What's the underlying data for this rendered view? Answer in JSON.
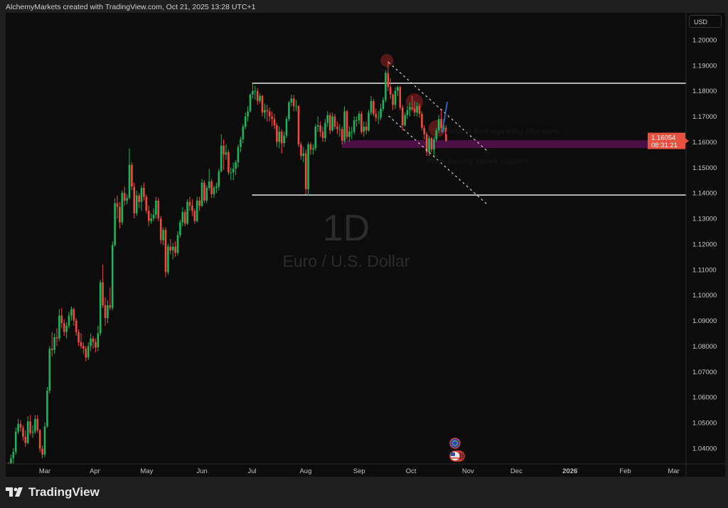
{
  "header": {
    "attribution": "AlchemyMarkets created with TradingView.com, Oct 21, 2025 13:28 UTC+1"
  },
  "footer": {
    "brand": "TradingView"
  },
  "price_axis": {
    "currency": "USD"
  },
  "colors": {
    "up": "#1fb35a",
    "down": "#ee4b3c",
    "background": "#0c0c0c",
    "zone": "#4a0f42",
    "price_label": "#e8503f",
    "projection": "#2f7fe0",
    "circle": "#7a1e1e"
  },
  "chart_data": {
    "type": "candlestick",
    "symbol_title": "Euro / U.S. Dollar",
    "interval": "1D",
    "ylim": [
      1.0395,
      1.2075
    ],
    "y_ticks": [
      "1.20000",
      "1.19000",
      "1.18000",
      "1.17000",
      "1.16000",
      "1.15000",
      "1.14000",
      "1.13000",
      "1.12000",
      "1.11000",
      "1.10000",
      "1.09000",
      "1.08000",
      "1.07000",
      "1.06000",
      "1.05000",
      "1.04000"
    ],
    "x_ticks": [
      {
        "label": "Mar",
        "date": "2025-03-03",
        "bold": false
      },
      {
        "label": "Apr",
        "date": "2025-04-01",
        "bold": false
      },
      {
        "label": "May",
        "date": "2025-05-01",
        "bold": false
      },
      {
        "label": "Jun",
        "date": "2025-06-02",
        "bold": false
      },
      {
        "label": "Jul",
        "date": "2025-07-01",
        "bold": false
      },
      {
        "label": "Aug",
        "date": "2025-08-01",
        "bold": false
      },
      {
        "label": "Sep",
        "date": "2025-09-01",
        "bold": false
      },
      {
        "label": "Oct",
        "date": "2025-10-01",
        "bold": false
      },
      {
        "label": "Nov",
        "date": "2025-11-03",
        "bold": false
      },
      {
        "label": "Dec",
        "date": "2025-12-01",
        "bold": false
      },
      {
        "label": "2026",
        "date": "2026-01-01",
        "bold": true
      },
      {
        "label": "Feb",
        "date": "2026-02-02",
        "bold": false
      },
      {
        "label": "Mar",
        "date": "2026-03-02",
        "bold": false
      }
    ],
    "current_price": {
      "value": "1.16054",
      "countdown": "08:31:21",
      "price": 1.16054
    },
    "first_date": "2025-02-10",
    "ohlc": [
      [
        1.033,
        1.0345,
        1.029,
        1.0305
      ],
      [
        1.0305,
        1.0375,
        1.0295,
        1.036
      ],
      [
        1.036,
        1.04,
        1.032,
        1.0385
      ],
      [
        1.0385,
        1.048,
        1.0375,
        1.0465
      ],
      [
        1.0465,
        1.0515,
        1.0455,
        1.0495
      ],
      [
        1.0495,
        1.051,
        1.0465,
        1.048
      ],
      [
        1.048,
        1.049,
        1.043,
        1.0445
      ],
      [
        1.0445,
        1.047,
        1.0405,
        1.042
      ],
      [
        1.042,
        1.0525,
        1.0415,
        1.0505
      ],
      [
        1.0505,
        1.053,
        1.045,
        1.046
      ],
      [
        1.046,
        1.049,
        1.044,
        1.0465
      ],
      [
        1.0465,
        1.053,
        1.0455,
        1.0515
      ],
      [
        1.0515,
        1.053,
        1.046,
        1.047
      ],
      [
        1.047,
        1.0475,
        1.0385,
        1.0398
      ],
      [
        1.0398,
        1.041,
        1.036,
        1.0375
      ],
      [
        1.0375,
        1.05,
        1.0365,
        1.0485
      ],
      [
        1.0485,
        1.064,
        1.048,
        1.0625
      ],
      [
        1.0625,
        1.08,
        1.0615,
        1.079
      ],
      [
        1.079,
        1.0855,
        1.076,
        1.0785
      ],
      [
        1.0785,
        1.085,
        1.077,
        1.0835
      ],
      [
        1.0835,
        1.087,
        1.08,
        1.083
      ],
      [
        1.083,
        1.0945,
        1.082,
        1.092
      ],
      [
        1.092,
        1.095,
        1.087,
        1.089
      ],
      [
        1.089,
        1.0905,
        1.084,
        1.0855
      ],
      [
        1.0855,
        1.0895,
        1.083,
        1.088
      ],
      [
        1.088,
        1.0935,
        1.087,
        1.092
      ],
      [
        1.092,
        1.0955,
        1.09,
        1.0945
      ],
      [
        1.0945,
        1.095,
        1.088,
        1.09
      ],
      [
        1.09,
        1.091,
        1.084,
        1.0855
      ],
      [
        1.0855,
        1.0865,
        1.08,
        1.0815
      ],
      [
        1.0815,
        1.085,
        1.079,
        1.08
      ],
      [
        1.08,
        1.0815,
        1.077,
        1.079
      ],
      [
        1.079,
        1.08,
        1.074,
        1.0755
      ],
      [
        1.0755,
        1.0815,
        1.0745,
        1.08
      ],
      [
        1.08,
        1.085,
        1.078,
        1.083
      ],
      [
        1.083,
        1.084,
        1.079,
        1.0815
      ],
      [
        1.0815,
        1.083,
        1.0775,
        1.0795
      ],
      [
        1.0795,
        1.088,
        1.078,
        1.085
      ],
      [
        1.085,
        1.106,
        1.084,
        1.105
      ],
      [
        1.105,
        1.112,
        1.095,
        1.096
      ],
      [
        1.096,
        1.099,
        1.088,
        1.091
      ],
      [
        1.091,
        1.098,
        1.089,
        1.096
      ],
      [
        1.096,
        1.103,
        1.094,
        1.095
      ],
      [
        1.095,
        1.121,
        1.094,
        1.1195
      ],
      [
        1.1195,
        1.138,
        1.119,
        1.136
      ],
      [
        1.136,
        1.139,
        1.13,
        1.1345
      ],
      [
        1.1345,
        1.1365,
        1.126,
        1.1285
      ],
      [
        1.1285,
        1.141,
        1.1275,
        1.14
      ],
      [
        1.14,
        1.1425,
        1.135,
        1.137
      ],
      [
        1.137,
        1.1395,
        1.1355,
        1.138
      ],
      [
        1.138,
        1.1575,
        1.1375,
        1.151
      ],
      [
        1.151,
        1.152,
        1.141,
        1.1425
      ],
      [
        1.1425,
        1.144,
        1.13,
        1.132
      ],
      [
        1.132,
        1.141,
        1.131,
        1.139
      ],
      [
        1.139,
        1.14,
        1.134,
        1.1365
      ],
      [
        1.1365,
        1.143,
        1.133,
        1.142
      ],
      [
        1.142,
        1.144,
        1.137,
        1.1385
      ],
      [
        1.1385,
        1.1395,
        1.132,
        1.133
      ],
      [
        1.133,
        1.135,
        1.127,
        1.129
      ],
      [
        1.129,
        1.132,
        1.128,
        1.13
      ],
      [
        1.13,
        1.134,
        1.129,
        1.1315
      ],
      [
        1.1315,
        1.1385,
        1.13,
        1.137
      ],
      [
        1.137,
        1.138,
        1.129,
        1.13
      ],
      [
        1.13,
        1.131,
        1.12,
        1.1215
      ],
      [
        1.1215,
        1.1265,
        1.1195,
        1.1255
      ],
      [
        1.1255,
        1.1265,
        1.107,
        1.109
      ],
      [
        1.109,
        1.12,
        1.108,
        1.119
      ],
      [
        1.119,
        1.122,
        1.116,
        1.1175
      ],
      [
        1.1175,
        1.1205,
        1.114,
        1.119
      ],
      [
        1.119,
        1.121,
        1.115,
        1.1165
      ],
      [
        1.1165,
        1.125,
        1.1155,
        1.1235
      ],
      [
        1.1235,
        1.1295,
        1.1225,
        1.1285
      ],
      [
        1.1285,
        1.1345,
        1.127,
        1.1325
      ],
      [
        1.1325,
        1.1335,
        1.127,
        1.128
      ],
      [
        1.128,
        1.1375,
        1.1275,
        1.1365
      ],
      [
        1.1365,
        1.1385,
        1.133,
        1.135
      ],
      [
        1.135,
        1.1375,
        1.131,
        1.133
      ],
      [
        1.133,
        1.134,
        1.128,
        1.129
      ],
      [
        1.129,
        1.1385,
        1.1285,
        1.137
      ],
      [
        1.137,
        1.1385,
        1.133,
        1.135
      ],
      [
        1.135,
        1.1455,
        1.1345,
        1.144
      ],
      [
        1.144,
        1.145,
        1.136,
        1.137
      ],
      [
        1.137,
        1.143,
        1.136,
        1.142
      ],
      [
        1.142,
        1.1495,
        1.141,
        1.1445
      ],
      [
        1.1445,
        1.1455,
        1.138,
        1.1395
      ],
      [
        1.1395,
        1.143,
        1.138,
        1.142
      ],
      [
        1.142,
        1.144,
        1.14,
        1.1425
      ],
      [
        1.1425,
        1.1495,
        1.141,
        1.1485
      ],
      [
        1.1485,
        1.163,
        1.148,
        1.1585
      ],
      [
        1.1585,
        1.161,
        1.149,
        1.155
      ],
      [
        1.155,
        1.159,
        1.153,
        1.156
      ],
      [
        1.156,
        1.157,
        1.147,
        1.148
      ],
      [
        1.148,
        1.15,
        1.145,
        1.148
      ],
      [
        1.148,
        1.152,
        1.145,
        1.1495
      ],
      [
        1.1495,
        1.153,
        1.147,
        1.152
      ],
      [
        1.152,
        1.159,
        1.15,
        1.158
      ],
      [
        1.158,
        1.162,
        1.156,
        1.161
      ],
      [
        1.161,
        1.167,
        1.1595,
        1.166
      ],
      [
        1.166,
        1.1715,
        1.165,
        1.17
      ],
      [
        1.17,
        1.174,
        1.168,
        1.172
      ],
      [
        1.172,
        1.179,
        1.1715,
        1.1785
      ],
      [
        1.1785,
        1.183,
        1.177,
        1.18
      ],
      [
        1.18,
        1.182,
        1.1765,
        1.18
      ],
      [
        1.18,
        1.181,
        1.1745,
        1.176
      ],
      [
        1.176,
        1.179,
        1.175,
        1.178
      ],
      [
        1.178,
        1.1785,
        1.17,
        1.1715
      ],
      [
        1.1715,
        1.175,
        1.169,
        1.1725
      ],
      [
        1.1725,
        1.1745,
        1.168,
        1.172
      ],
      [
        1.172,
        1.1735,
        1.168,
        1.17
      ],
      [
        1.17,
        1.172,
        1.166,
        1.169
      ],
      [
        1.169,
        1.171,
        1.165,
        1.1665
      ],
      [
        1.1665,
        1.1675,
        1.158,
        1.16
      ],
      [
        1.16,
        1.166,
        1.1575,
        1.164
      ],
      [
        1.164,
        1.165,
        1.1555,
        1.1595
      ],
      [
        1.1595,
        1.164,
        1.158,
        1.1625
      ],
      [
        1.1625,
        1.17,
        1.1615,
        1.169
      ],
      [
        1.169,
        1.176,
        1.168,
        1.1755
      ],
      [
        1.1755,
        1.1785,
        1.174,
        1.177
      ],
      [
        1.177,
        1.1785,
        1.172,
        1.174
      ],
      [
        1.174,
        1.1765,
        1.172,
        1.174
      ],
      [
        1.174,
        1.1745,
        1.158,
        1.159
      ],
      [
        1.159,
        1.16,
        1.153,
        1.1545
      ],
      [
        1.1545,
        1.158,
        1.152,
        1.1555
      ],
      [
        1.1555,
        1.157,
        1.1395,
        1.1415
      ],
      [
        1.1415,
        1.16,
        1.139,
        1.159
      ],
      [
        1.159,
        1.16,
        1.155,
        1.157
      ],
      [
        1.157,
        1.159,
        1.155,
        1.1575
      ],
      [
        1.1575,
        1.167,
        1.1565,
        1.166
      ],
      [
        1.166,
        1.17,
        1.164,
        1.1665
      ],
      [
        1.1665,
        1.168,
        1.162,
        1.164
      ],
      [
        1.164,
        1.166,
        1.16,
        1.1615
      ],
      [
        1.1615,
        1.169,
        1.16,
        1.1675
      ],
      [
        1.1675,
        1.172,
        1.166,
        1.1705
      ],
      [
        1.1705,
        1.1715,
        1.163,
        1.1645
      ],
      [
        1.1645,
        1.1715,
        1.164,
        1.17
      ],
      [
        1.17,
        1.171,
        1.165,
        1.166
      ],
      [
        1.166,
        1.168,
        1.163,
        1.165
      ],
      [
        1.165,
        1.167,
        1.162,
        1.165
      ],
      [
        1.165,
        1.166,
        1.159,
        1.1605
      ],
      [
        1.1605,
        1.174,
        1.1595,
        1.172
      ],
      [
        1.172,
        1.1725,
        1.161,
        1.162
      ],
      [
        1.162,
        1.166,
        1.16,
        1.164
      ],
      [
        1.164,
        1.166,
        1.161,
        1.164
      ],
      [
        1.164,
        1.17,
        1.163,
        1.1685
      ],
      [
        1.1685,
        1.17,
        1.166,
        1.1685
      ],
      [
        1.1685,
        1.172,
        1.167,
        1.171
      ],
      [
        1.171,
        1.172,
        1.163,
        1.164
      ],
      [
        1.164,
        1.168,
        1.162,
        1.166
      ],
      [
        1.166,
        1.168,
        1.163,
        1.1645
      ],
      [
        1.1645,
        1.1725,
        1.164,
        1.1715
      ],
      [
        1.1715,
        1.178,
        1.1705,
        1.176
      ],
      [
        1.176,
        1.177,
        1.17,
        1.171
      ],
      [
        1.171,
        1.173,
        1.168,
        1.1695
      ],
      [
        1.1695,
        1.172,
        1.167,
        1.1695
      ],
      [
        1.1695,
        1.175,
        1.1685,
        1.173
      ],
      [
        1.173,
        1.1775,
        1.172,
        1.1765
      ],
      [
        1.1765,
        1.188,
        1.1755,
        1.187
      ],
      [
        1.187,
        1.1918,
        1.18,
        1.1815
      ],
      [
        1.1815,
        1.185,
        1.177,
        1.1785
      ],
      [
        1.1785,
        1.179,
        1.1725,
        1.1745
      ],
      [
        1.1745,
        1.1815,
        1.173,
        1.18
      ],
      [
        1.18,
        1.182,
        1.178,
        1.1815
      ],
      [
        1.1815,
        1.182,
        1.1725,
        1.1735
      ],
      [
        1.1735,
        1.1745,
        1.1645,
        1.1665
      ],
      [
        1.1665,
        1.1715,
        1.166,
        1.1705
      ],
      [
        1.1705,
        1.174,
        1.169,
        1.1725
      ],
      [
        1.1725,
        1.1755,
        1.17,
        1.1735
      ],
      [
        1.1735,
        1.178,
        1.172,
        1.173
      ],
      [
        1.173,
        1.176,
        1.17,
        1.1715
      ],
      [
        1.1715,
        1.1755,
        1.17,
        1.174
      ],
      [
        1.174,
        1.175,
        1.1695,
        1.171
      ],
      [
        1.171,
        1.172,
        1.1645,
        1.1655
      ],
      [
        1.1655,
        1.1665,
        1.161,
        1.163
      ],
      [
        1.163,
        1.164,
        1.1545,
        1.156
      ],
      [
        1.156,
        1.1625,
        1.1545,
        1.1615
      ],
      [
        1.1615,
        1.162,
        1.156,
        1.157
      ],
      [
        1.157,
        1.162,
        1.1545,
        1.161
      ],
      [
        1.161,
        1.1655,
        1.16,
        1.1645
      ],
      [
        1.1645,
        1.1705,
        1.1635,
        1.169
      ],
      [
        1.169,
        1.173,
        1.164,
        1.1655
      ],
      [
        1.1655,
        1.169,
        1.164,
        1.1655
      ],
      [
        1.1655,
        1.1665,
        1.16,
        1.1605
      ]
    ],
    "annotations": {
      "range_top": {
        "price": 1.183,
        "from": "2025-07-01"
      },
      "range_bottom": {
        "price": 1.1392,
        "from": "2025-07-01"
      },
      "support_zone": {
        "top": 1.1607,
        "bottom": 1.1576,
        "from": "2025-08-22"
      },
      "channel_upper": {
        "from": [
          "2025-09-18",
          1.1912
        ],
        "to": [
          "2025-11-14",
          1.1565
        ]
      },
      "channel_lower": {
        "from": [
          "2025-09-18",
          1.1702
        ],
        "to": [
          "2025-11-14",
          1.1356
        ]
      },
      "circles": [
        [
          "2025-09-17",
          1.1919
        ],
        [
          "2025-10-03",
          1.1757
        ],
        [
          "2025-10-16",
          1.1652
        ]
      ],
      "projection": {
        "from": [
          "2025-10-19",
          1.1635
        ],
        "to": [
          "2025-10-22",
          1.1757
        ]
      },
      "labels": [
        {
          "text": "Dovish Fed repricing lifts euro",
          "date": "2025-10-21",
          "price": 1.163
        },
        {
          "text": "Price basing above support",
          "date": "2025-10-10",
          "price": 1.1515
        }
      ]
    },
    "events": [
      {
        "icon": "eu-flag-icon"
      },
      {
        "icon": "us-flag-icon"
      }
    ]
  }
}
